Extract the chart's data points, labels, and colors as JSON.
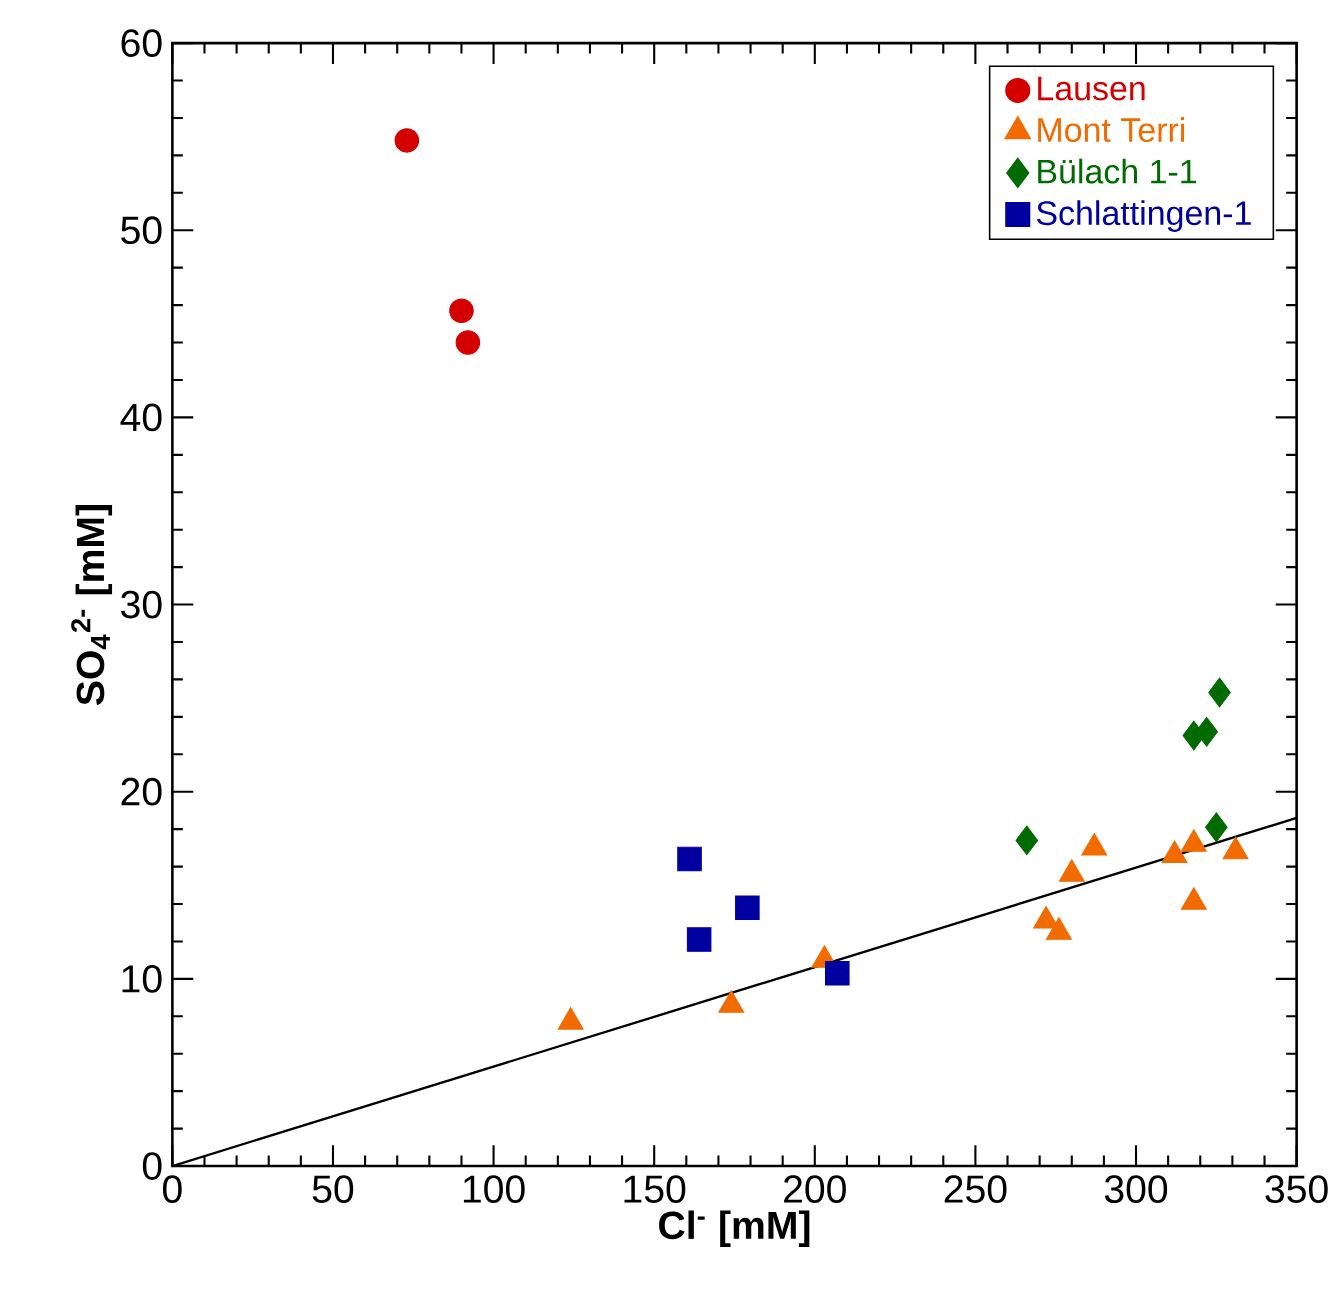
{
  "chart_data": {
    "type": "scatter",
    "xlabel": "Cl$^{-}$ [mM]",
    "ylabel": "SO$_{4}$$^{2-}$ [mM]",
    "xlim": [
      0,
      350
    ],
    "ylim": [
      0,
      60
    ],
    "xticks": [
      0,
      50,
      100,
      150,
      200,
      250,
      300,
      350
    ],
    "yticks": [
      0,
      10,
      20,
      30,
      40,
      50,
      60
    ],
    "grid": false,
    "legend": "top right",
    "series": [
      {
        "name": "Lausen",
        "color": "#d40000",
        "marker": "circle",
        "x": [
          73,
          90,
          92
        ],
        "values": [
          54.8,
          45.7,
          44.0
        ]
      },
      {
        "name": "Mont Terri",
        "color": "#f26b00",
        "marker": "triangle",
        "x": [
          124,
          174,
          203,
          272,
          276,
          280,
          287,
          312,
          318,
          318,
          331
        ],
        "values": [
          7.7,
          8.6,
          11.0,
          13.1,
          12.5,
          15.6,
          17.0,
          16.6,
          17.2,
          14.1,
          16.8
        ]
      },
      {
        "name": "Bülach 1-1",
        "color": "#006b00",
        "marker": "diamond",
        "x": [
          266,
          318,
          322,
          326,
          325
        ],
        "values": [
          17.4,
          23.0,
          23.2,
          25.3,
          18.1
        ]
      },
      {
        "name": "Schlattingen-1",
        "color": "#0000a0",
        "marker": "square",
        "x": [
          161,
          164,
          179,
          207
        ],
        "values": [
          16.4,
          12.1,
          13.8,
          10.3
        ]
      },
      {
        "type": "line",
        "color": "#000000",
        "marker": "none",
        "line_style": "solid",
        "x": [
          0,
          350
        ],
        "values": [
          0,
          18.6
        ]
      }
    ]
  }
}
